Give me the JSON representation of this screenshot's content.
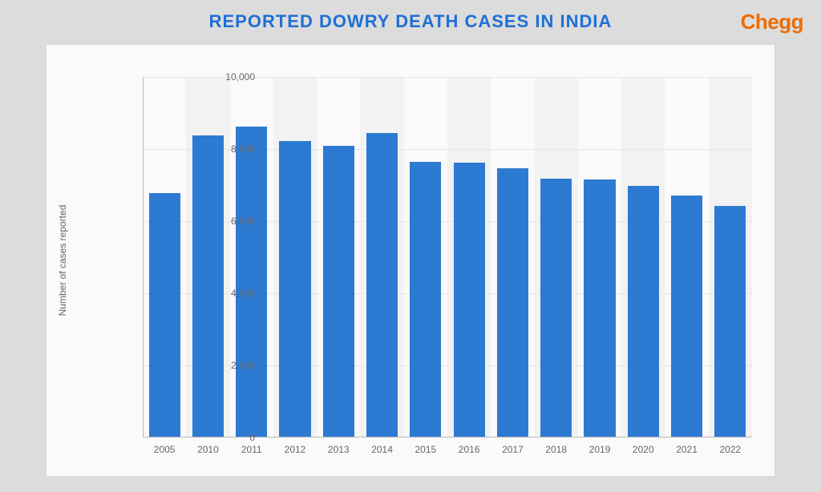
{
  "title": "REPORTED DOWRY DEATH CASES IN INDIA",
  "brand": "Chegg",
  "chart": {
    "type": "bar",
    "categories": [
      "2005",
      "2010",
      "2011",
      "2012",
      "2013",
      "2014",
      "2015",
      "2016",
      "2017",
      "2018",
      "2019",
      "2020",
      "2021",
      "2022"
    ],
    "values": [
      6770,
      8380,
      8620,
      8230,
      8080,
      8450,
      7640,
      7630,
      7470,
      7170,
      7150,
      6970,
      6720,
      6420
    ],
    "bar_color": "#2d7ad2",
    "alt_band_color": "#f2f2f2",
    "panel_bg": "#fafafa",
    "panel_border": "#d9d9d9",
    "grid_color": "#e6e6e6",
    "axis_color": "#b8b8b8",
    "tick_font_color": "#666666",
    "title_color": "#1e6fd6",
    "brand_color": "#ee6c00",
    "page_bg": "#dcdcdc",
    "y_axis_title": "Number of cases reported",
    "y_ticks": [
      0,
      2000,
      4000,
      6000,
      8000,
      10000
    ],
    "y_tick_labels": [
      "0",
      "2,000",
      "4,000",
      "6,000",
      "8,000",
      "10,000"
    ],
    "ylim": [
      0,
      10000
    ],
    "bar_width_ratio": 0.72,
    "title_fontsize": 22,
    "brand_fontsize": 26,
    "tick_fontsize": 12,
    "axis_title_fontsize": 12
  }
}
